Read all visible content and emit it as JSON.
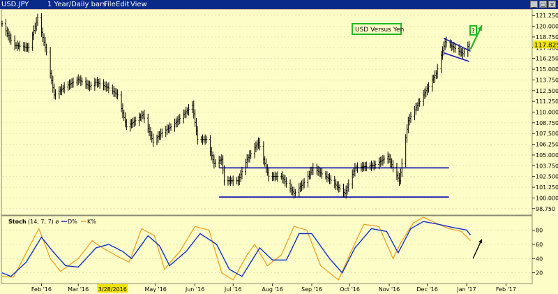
{
  "window": {
    "symbol": "USD.JPY",
    "title": "1 Year/Daily bars",
    "menu": [
      "File",
      "Edit",
      "View"
    ],
    "controls": [
      "_",
      "□",
      "×"
    ]
  },
  "chart_data": [
    {
      "type": "ohlc",
      "annotation_title": "USD Versus Yen",
      "annotation_question": "?",
      "last_price_label": "117.825",
      "y_ticks": [
        "121.250",
        "120.000",
        "118.750",
        "117.500",
        "116.250",
        "115.000",
        "113.750",
        "112.500",
        "111.250",
        "110.000",
        "108.750",
        "107.500",
        "106.250",
        "105.000",
        "103.750",
        "102.500",
        "101.250",
        "100.000",
        "98.750"
      ],
      "ylim": [
        98.0,
        122.0
      ],
      "x_labels": [
        "Feb '16",
        "Mar '16",
        "3/28/2016",
        "May '16",
        "Jun '16",
        "Jul '16",
        "Aug '16",
        "Sep '16",
        "Oct '16",
        "Nov '16",
        "Dec '16",
        "Jan '17",
        "Feb '17"
      ],
      "highlighted_x_label": "3/28/2016",
      "support_resistance": [
        103.5,
        100.1
      ],
      "anchors": [
        [
          "2016-01-01",
          120.3
        ],
        [
          "2016-01-10",
          117.8
        ],
        [
          "2016-01-22",
          117.5
        ],
        [
          "2016-01-29",
          121.0
        ],
        [
          "2016-02-05",
          117.0
        ],
        [
          "2016-02-11",
          112.0
        ],
        [
          "2016-02-20",
          113.0
        ],
        [
          "2016-03-01",
          113.8
        ],
        [
          "2016-03-10",
          113.0
        ],
        [
          "2016-03-15",
          113.5
        ],
        [
          "2016-03-25",
          112.8
        ],
        [
          "2016-04-01",
          112.0
        ],
        [
          "2016-04-08",
          108.3
        ],
        [
          "2016-04-15",
          109.0
        ],
        [
          "2016-04-21",
          109.7
        ],
        [
          "2016-04-29",
          106.5
        ],
        [
          "2016-05-05",
          107.5
        ],
        [
          "2016-05-15",
          108.5
        ],
        [
          "2016-05-30",
          110.8
        ],
        [
          "2016-06-03",
          106.8
        ],
        [
          "2016-06-10",
          106.8
        ],
        [
          "2016-06-16",
          104.0
        ],
        [
          "2016-06-22",
          104.5
        ],
        [
          "2016-06-24",
          102.0
        ],
        [
          "2016-07-05",
          102.0
        ],
        [
          "2016-07-12",
          104.5
        ],
        [
          "2016-07-21",
          106.5
        ],
        [
          "2016-07-29",
          102.5
        ],
        [
          "2016-08-08",
          102.5
        ],
        [
          "2016-08-18",
          100.5
        ],
        [
          "2016-08-26",
          101.8
        ],
        [
          "2016-09-02",
          103.5
        ],
        [
          "2016-09-15",
          102.2
        ],
        [
          "2016-09-27",
          100.5
        ],
        [
          "2016-10-05",
          103.5
        ],
        [
          "2016-10-20",
          103.8
        ],
        [
          "2016-10-31",
          104.8
        ],
        [
          "2016-11-09",
          102.0
        ],
        [
          "2016-11-16",
          109.0
        ],
        [
          "2016-11-28",
          112.0
        ],
        [
          "2016-12-08",
          114.5
        ],
        [
          "2016-12-15",
          118.2
        ],
        [
          "2016-12-22",
          117.5
        ],
        [
          "2016-12-29",
          116.8
        ],
        [
          "2017-01-03",
          117.825
        ]
      ],
      "flag_channel": [
        [
          [
            "2016-12-14",
            118.6
          ],
          [
            "2017-01-04",
            117.1
          ]
        ],
        [
          [
            "2016-12-14",
            116.9
          ],
          [
            "2017-01-03",
            115.9
          ]
        ]
      ],
      "up_arrow": [
        [
          "2017-01-04",
          117.3
        ],
        [
          "2017-01-13",
          120.1
        ]
      ],
      "colors": {
        "price_bars": "#000000",
        "support_lines": "#1a1ab8",
        "arrow": "#22b822",
        "box": "#22b822"
      }
    },
    {
      "type": "line",
      "title": "Stoch",
      "params": "(14, 7, 7) ø",
      "series": [
        {
          "name": "D%",
          "color": "#1030d0"
        },
        {
          "name": "K%",
          "color": "#f0a020"
        }
      ],
      "y_ticks": [
        "80",
        "60",
        "40",
        "20"
      ],
      "ylim": [
        5,
        100
      ],
      "d_anchors": [
        [
          "2016-01-01",
          20
        ],
        [
          "2016-01-08",
          15
        ],
        [
          "2016-01-20",
          35
        ],
        [
          "2016-02-01",
          70
        ],
        [
          "2016-02-10",
          50
        ],
        [
          "2016-02-20",
          30
        ],
        [
          "2016-03-01",
          28
        ],
        [
          "2016-03-15",
          55
        ],
        [
          "2016-03-25",
          60
        ],
        [
          "2016-04-05",
          50
        ],
        [
          "2016-04-12",
          40
        ],
        [
          "2016-04-25",
          72
        ],
        [
          "2016-05-04",
          58
        ],
        [
          "2016-05-12",
          30
        ],
        [
          "2016-05-25",
          50
        ],
        [
          "2016-06-05",
          75
        ],
        [
          "2016-06-18",
          60
        ],
        [
          "2016-06-28",
          25
        ],
        [
          "2016-07-08",
          15
        ],
        [
          "2016-07-22",
          55
        ],
        [
          "2016-08-01",
          38
        ],
        [
          "2016-08-12",
          38
        ],
        [
          "2016-08-22",
          75
        ],
        [
          "2016-09-01",
          75
        ],
        [
          "2016-09-15",
          40
        ],
        [
          "2016-09-25",
          20
        ],
        [
          "2016-10-05",
          55
        ],
        [
          "2016-10-18",
          82
        ],
        [
          "2016-10-30",
          78
        ],
        [
          "2016-11-08",
          48
        ],
        [
          "2016-11-18",
          82
        ],
        [
          "2016-11-28",
          92
        ],
        [
          "2016-12-10",
          88
        ],
        [
          "2016-12-20",
          84
        ],
        [
          "2017-01-01",
          80
        ],
        [
          "2017-01-04",
          73
        ]
      ],
      "k_anchors": [
        [
          "2016-01-01",
          15
        ],
        [
          "2016-01-10",
          14
        ],
        [
          "2016-01-22",
          55
        ],
        [
          "2016-01-30",
          82
        ],
        [
          "2016-02-08",
          40
        ],
        [
          "2016-02-16",
          22
        ],
        [
          "2016-03-01",
          40
        ],
        [
          "2016-03-12",
          65
        ],
        [
          "2016-03-20",
          55
        ],
        [
          "2016-03-30",
          45
        ],
        [
          "2016-04-10",
          35
        ],
        [
          "2016-04-20",
          82
        ],
        [
          "2016-04-30",
          72
        ],
        [
          "2016-05-08",
          25
        ],
        [
          "2016-05-20",
          50
        ],
        [
          "2016-06-01",
          85
        ],
        [
          "2016-06-12",
          80
        ],
        [
          "2016-06-22",
          20
        ],
        [
          "2016-07-01",
          10
        ],
        [
          "2016-07-12",
          45
        ],
        [
          "2016-07-18",
          60
        ],
        [
          "2016-07-28",
          30
        ],
        [
          "2016-08-08",
          45
        ],
        [
          "2016-08-18",
          85
        ],
        [
          "2016-08-28",
          80
        ],
        [
          "2016-09-08",
          30
        ],
        [
          "2016-09-22",
          10
        ],
        [
          "2016-10-02",
          50
        ],
        [
          "2016-10-12",
          88
        ],
        [
          "2016-10-24",
          85
        ],
        [
          "2016-11-04",
          40
        ],
        [
          "2016-11-10",
          62
        ],
        [
          "2016-11-20",
          90
        ],
        [
          "2016-11-28",
          98
        ],
        [
          "2016-12-05",
          92
        ],
        [
          "2016-12-18",
          82
        ],
        [
          "2016-12-28",
          78
        ],
        [
          "2017-01-04",
          65
        ]
      ],
      "forecast_arrow": [
        [
          "2017-01-06",
          40
        ],
        [
          "2017-01-13",
          67
        ]
      ]
    }
  ]
}
